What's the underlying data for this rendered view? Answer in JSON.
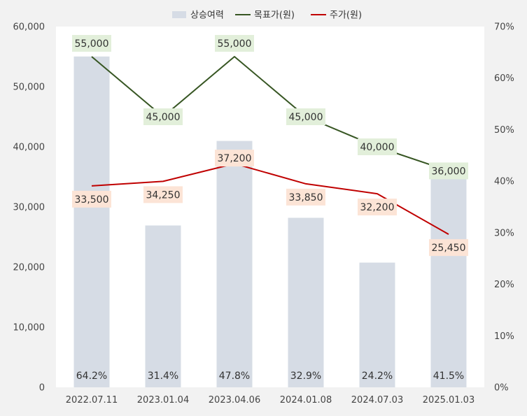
{
  "chart_data": {
    "type": "bar+line",
    "categories": [
      "2022.07.11",
      "2023.01.04",
      "2023.04.06",
      "2024.01.08",
      "2024.07.03",
      "2025.01.03"
    ],
    "series": [
      {
        "name": "상승여력",
        "type": "bar",
        "axis": "right",
        "values": [
          64.2,
          31.4,
          47.8,
          32.9,
          24.2,
          41.5
        ],
        "labels": [
          "64.2%",
          "31.4%",
          "47.8%",
          "32.9%",
          "24.2%",
          "41.5%"
        ],
        "color": "#d6dce5"
      },
      {
        "name": "목표가(원)",
        "type": "line",
        "axis": "left",
        "values": [
          55000,
          45000,
          55000,
          45000,
          40000,
          36000
        ],
        "labels": [
          "55,000",
          "45,000",
          "55,000",
          "45,000",
          "40,000",
          "36,000"
        ],
        "color": "#375623",
        "label_bg": "#e2efda"
      },
      {
        "name": "주가(원)",
        "type": "line",
        "axis": "left",
        "values": [
          33500,
          34250,
          37200,
          33850,
          32200,
          25450
        ],
        "labels": [
          "33,500",
          "34,250",
          "37,200",
          "33,850",
          "32,200",
          "25,450"
        ],
        "color": "#c00000",
        "label_bg": "#fce4d6"
      }
    ],
    "y_left": {
      "min": 0,
      "max": 60000,
      "ticks": [
        0,
        10000,
        20000,
        30000,
        40000,
        50000,
        60000
      ],
      "tick_labels": [
        "0",
        "10,000",
        "20,000",
        "30,000",
        "40,000",
        "50,000",
        "60,000"
      ]
    },
    "y_right": {
      "min": 0,
      "max": 70,
      "ticks": [
        0,
        10,
        20,
        30,
        40,
        50,
        60,
        70
      ],
      "tick_labels": [
        "0%",
        "10%",
        "20%",
        "30%",
        "40%",
        "50%",
        "60%",
        "70%"
      ]
    },
    "legend_position": "top",
    "grid": false
  }
}
